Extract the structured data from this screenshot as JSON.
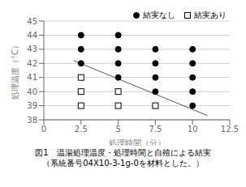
{
  "chart_data": {
    "type": "scatter",
    "title": "図1　温湯処理温度・処理時間と自殖による結実",
    "subtitle": "（系統番号04X10-3-1g-0を材料とした。）",
    "xlabel": "処理時間（分）",
    "ylabel": "処理温度（°C）",
    "xlim": [
      0,
      12.5
    ],
    "ylim": [
      38,
      45
    ],
    "xticks": [
      0,
      2.5,
      5,
      7.5,
      10,
      12.5
    ],
    "yticks": [
      38,
      39,
      40,
      41,
      42,
      43,
      44,
      45
    ],
    "grid": "y",
    "legend": "upper right",
    "series": [
      {
        "type": "line",
        "color": "#555555",
        "line_style": "solid",
        "x": [
          2.0,
          11.0
        ],
        "values": [
          42.2,
          38.3
        ]
      },
      {
        "name": "結実なし",
        "color": "#000000",
        "marker": "circle",
        "x": [
          2.5,
          2.5,
          2.5,
          5,
          5,
          5,
          5,
          7.5,
          7.5,
          7.5,
          7.5,
          10,
          10,
          10,
          10,
          10
        ],
        "values": [
          44,
          43,
          42,
          44,
          43,
          42,
          41,
          43,
          42,
          41,
          40,
          43,
          42,
          41,
          40,
          39
        ]
      },
      {
        "name": "結実あり",
        "color": "#000000",
        "marker": "open_square",
        "x": [
          2.5,
          2.5,
          2.5,
          5,
          5,
          7.5
        ],
        "values": [
          41,
          40,
          39,
          40,
          39,
          39
        ]
      }
    ]
  }
}
